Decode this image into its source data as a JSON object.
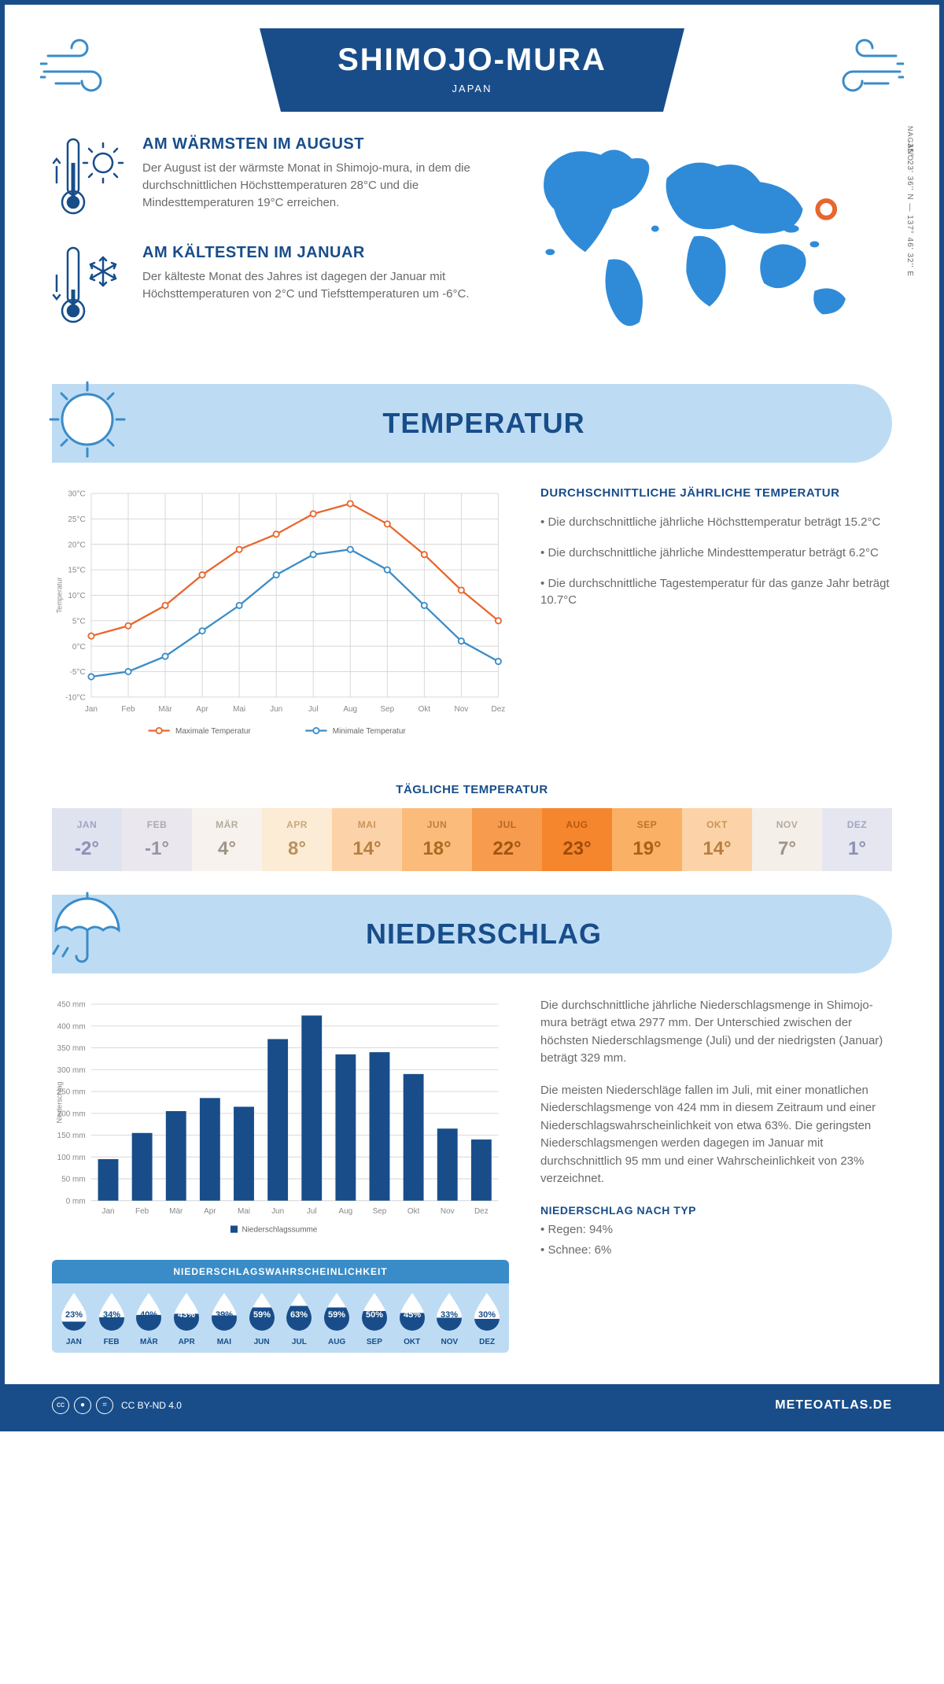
{
  "header": {
    "title": "SHIMOJO-MURA",
    "country": "JAPAN",
    "region": "NAGANO",
    "coords": "35° 23' 36'' N — 137° 46' 32'' E"
  },
  "facts": {
    "warm_title": "AM WÄRMSTEN IM AUGUST",
    "warm_text": "Der August ist der wärmste Monat in Shimojo-mura, in dem die durchschnittlichen Höchsttemperaturen 28°C und die Mindesttemperaturen 19°C erreichen.",
    "cold_title": "AM KÄLTESTEN IM JANUAR",
    "cold_text": "Der kälteste Monat des Jahres ist dagegen der Januar mit Höchsttemperaturen von 2°C und Tiefsttemperaturen um -6°C."
  },
  "sections": {
    "temp": "TEMPERATUR",
    "precip": "NIEDERSCHLAG"
  },
  "temp_chart": {
    "months": [
      "Jan",
      "Feb",
      "Mär",
      "Apr",
      "Mai",
      "Jun",
      "Jul",
      "Aug",
      "Sep",
      "Okt",
      "Nov",
      "Dez"
    ],
    "max": [
      2,
      4,
      8,
      14,
      19,
      22,
      26,
      28,
      24,
      18,
      11,
      5
    ],
    "min": [
      -6,
      -5,
      -2,
      3,
      8,
      14,
      18,
      19,
      15,
      8,
      1,
      -3
    ],
    "ymin": -10,
    "ymax": 30,
    "ystep": 5,
    "ylabel": "Temperatur",
    "color_max": "#e8662d",
    "color_min": "#3a8cc8",
    "grid_color": "#d5d5d5",
    "legend_max": "Maximale Temperatur",
    "legend_min": "Minimale Temperatur"
  },
  "temp_facts": {
    "title": "DURCHSCHNITTLICHE JÄHRLICHE TEMPERATUR",
    "l1": "• Die durchschnittliche jährliche Höchsttemperatur beträgt 15.2°C",
    "l2": "• Die durchschnittliche jährliche Mindesttemperatur beträgt 6.2°C",
    "l3": "• Die durchschnittliche Tagestemperatur für das ganze Jahr beträgt 10.7°C"
  },
  "daily": {
    "title": "TÄGLICHE TEMPERATUR",
    "months": [
      "JAN",
      "FEB",
      "MÄR",
      "APR",
      "MAI",
      "JUN",
      "JUL",
      "AUG",
      "SEP",
      "OKT",
      "NOV",
      "DEZ"
    ],
    "values": [
      "-2°",
      "-1°",
      "4°",
      "8°",
      "14°",
      "18°",
      "22°",
      "23°",
      "19°",
      "14°",
      "7°",
      "1°"
    ],
    "bg": [
      "#dfe2ef",
      "#ebe7ee",
      "#f7f2ed",
      "#fcebd5",
      "#fcd3a8",
      "#fbbb7b",
      "#f79b4e",
      "#f6862e",
      "#fab065",
      "#fcd3a8",
      "#f5efe9",
      "#e5e6ef"
    ],
    "fg": [
      "#8c90b5",
      "#9a92a4",
      "#9f9486",
      "#b7935f",
      "#b77f3f",
      "#ac6a22",
      "#a15512",
      "#9e4b06",
      "#a96218",
      "#b77f3f",
      "#9f9486",
      "#8c90b5"
    ]
  },
  "precip_chart": {
    "months": [
      "Jan",
      "Feb",
      "Mär",
      "Apr",
      "Mai",
      "Jun",
      "Jul",
      "Aug",
      "Sep",
      "Okt",
      "Nov",
      "Dez"
    ],
    "values": [
      95,
      155,
      205,
      235,
      215,
      370,
      424,
      335,
      340,
      290,
      165,
      140
    ],
    "ymax": 450,
    "ystep": 50,
    "ylabel": "Niederschlag",
    "bar_color": "#184d8a",
    "grid_color": "#d5d5d5",
    "legend": "Niederschlagssumme"
  },
  "precip_text": {
    "p1": "Die durchschnittliche jährliche Niederschlagsmenge in Shimojo-mura beträgt etwa 2977 mm. Der Unterschied zwischen der höchsten Niederschlagsmenge (Juli) und der niedrigsten (Januar) beträgt 329 mm.",
    "p2": "Die meisten Niederschläge fallen im Juli, mit einer monatlichen Niederschlagsmenge von 424 mm in diesem Zeitraum und einer Niederschlagswahrscheinlichkeit von etwa 63%. Die geringsten Niederschlagsmengen werden dagegen im Januar mit durchschnittlich 95 mm und einer Wahrscheinlichkeit von 23% verzeichnet.",
    "type_title": "NIEDERSCHLAG NACH TYP",
    "type1": "• Regen: 94%",
    "type2": "• Schnee: 6%"
  },
  "prob": {
    "title": "NIEDERSCHLAGSWAHRSCHEINLICHKEIT",
    "months": [
      "JAN",
      "FEB",
      "MÄR",
      "APR",
      "MAI",
      "JUN",
      "JUL",
      "AUG",
      "SEP",
      "OKT",
      "NOV",
      "DEZ"
    ],
    "values": [
      "23%",
      "34%",
      "40%",
      "43%",
      "39%",
      "59%",
      "63%",
      "59%",
      "50%",
      "45%",
      "33%",
      "30%"
    ],
    "fills": [
      23,
      34,
      40,
      43,
      39,
      59,
      63,
      59,
      50,
      45,
      33,
      30
    ],
    "drop_dark": "#184d8a",
    "drop_light": "#ffffff"
  },
  "footer": {
    "license": "CC BY-ND 4.0",
    "site": "METEOATLAS.DE"
  },
  "colors": {
    "primary": "#184d8a",
    "light_blue": "#bddcf4",
    "mid_blue": "#3a8cc8",
    "map_blue": "#2f8bd8",
    "grey_text": "#6a6a6a"
  }
}
